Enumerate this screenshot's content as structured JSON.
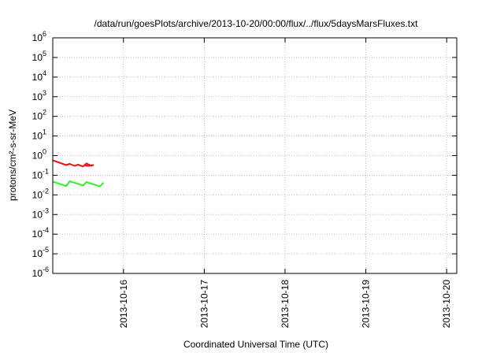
{
  "chart_data": {
    "type": "line",
    "title": "/data/run/goesPlots/archive/2013-10-20/00:00/flux/../flux/5daysMarsFluxes.txt",
    "xlabel": "Coordinated Universal Time (UTC)",
    "ylabel": "protons/cm²-s-sr-MeV",
    "y_scale": "log",
    "ylim": [
      "1e-6",
      "1e6"
    ],
    "xlim": [
      "2013-10-15T03:00",
      "2013-10-20T03:00"
    ],
    "grid": true,
    "legend": "none",
    "x_ticks": [
      {
        "value": "2013-10-16T00:00",
        "label": "2013-10-16"
      },
      {
        "value": "2013-10-17T00:00",
        "label": "2013-10-17"
      },
      {
        "value": "2013-10-18T00:00",
        "label": "2013-10-18"
      },
      {
        "value": "2013-10-19T00:00",
        "label": "2013-10-19"
      },
      {
        "value": "2013-10-20T00:00",
        "label": "2013-10-20"
      }
    ],
    "y_ticks": [
      {
        "value": 1e-06,
        "base": "10",
        "exp": "-6"
      },
      {
        "value": 1e-05,
        "base": "10",
        "exp": "-5"
      },
      {
        "value": 0.0001,
        "base": "10",
        "exp": "-4"
      },
      {
        "value": 0.001,
        "base": "10",
        "exp": "-3"
      },
      {
        "value": 0.01,
        "base": "10",
        "exp": "-2"
      },
      {
        "value": 0.1,
        "base": "10",
        "exp": "-1"
      },
      {
        "value": 1,
        "base": "10",
        "exp": "0"
      },
      {
        "value": 10,
        "base": "10",
        "exp": "1"
      },
      {
        "value": 100,
        "base": "10",
        "exp": "2"
      },
      {
        "value": 1000,
        "base": "10",
        "exp": "3"
      },
      {
        "value": 10000,
        "base": "10",
        "exp": "4"
      },
      {
        "value": 100000,
        "base": "10",
        "exp": "5"
      },
      {
        "value": 1000000,
        "base": "10",
        "exp": "6"
      }
    ],
    "series": [
      {
        "color": "#ee1111",
        "values": [
          [
            "2013-10-15T03:00",
            0.58
          ],
          [
            "2013-10-15T06:00",
            0.38
          ],
          [
            "2013-10-15T07:00",
            0.33
          ],
          [
            "2013-10-15T08:00",
            0.38
          ],
          [
            "2013-10-15T09:30",
            0.3
          ],
          [
            "2013-10-15T10:30",
            0.35
          ],
          [
            "2013-10-15T12:00",
            0.28
          ],
          [
            "2013-10-15T13:00",
            0.4
          ],
          [
            "2013-10-15T14:30",
            0.3
          ],
          [
            "2013-10-15T15:00",
            0.33
          ],
          [
            "2013-10-15T13:30",
            0.3
          ],
          [
            "2013-10-15T12:30",
            0.33
          ],
          [
            "2013-10-15T13:00",
            0.3
          ]
        ]
      },
      {
        "color": "#33ee22",
        "values": [
          [
            "2013-10-15T03:00",
            0.048
          ],
          [
            "2013-10-15T07:00",
            0.028
          ],
          [
            "2013-10-15T08:00",
            0.05
          ],
          [
            "2013-10-15T12:00",
            0.03
          ],
          [
            "2013-10-15T13:00",
            0.045
          ],
          [
            "2013-10-15T17:00",
            0.027
          ],
          [
            "2013-10-15T18:00",
            0.04
          ]
        ]
      }
    ]
  }
}
